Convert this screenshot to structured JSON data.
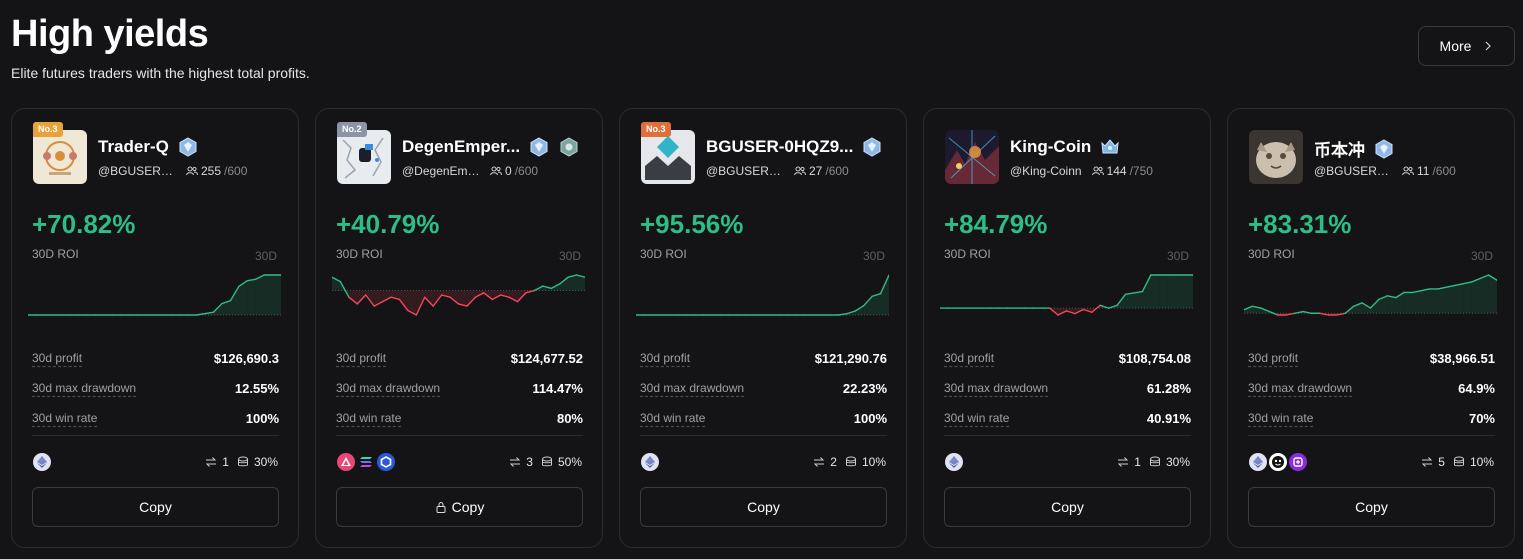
{
  "header": {
    "title": "High yields",
    "subtitle": "Elite futures traders with the highest total profits.",
    "more_label": "More"
  },
  "labels": {
    "roi": "30D ROI",
    "period": "30D",
    "profit": "30d profit",
    "drawdown": "30d max drawdown",
    "win_rate": "30d win rate",
    "copy": "Copy"
  },
  "colors": {
    "positive": "#2ebd85",
    "negative": "#f6465d",
    "background": "#141416"
  },
  "cards": [
    {
      "rank": "No.3",
      "name": "Trader-Q",
      "handle": "@BGUSER-N...",
      "followers": "255",
      "capacity": "/600",
      "roi": "+70.82%",
      "profit": "$126,690.3",
      "drawdown": "12.55%",
      "win_rate": "100%",
      "trades": "1",
      "share": "30%",
      "locked": false,
      "coins": [
        "ethereum-icon"
      ],
      "spark": [
        0,
        0,
        0,
        0,
        0,
        0,
        0,
        0,
        0,
        0,
        0,
        0,
        0,
        0,
        0,
        0,
        0,
        0,
        0,
        0,
        0,
        1,
        2,
        8,
        10,
        20,
        24,
        25,
        28,
        28,
        28
      ]
    },
    {
      "rank": "No.2",
      "name": "DegenEmper...",
      "handle": "@DegenEmp...",
      "followers": "0",
      "capacity": "/600",
      "roi": "+40.79%",
      "profit": "$124,677.52",
      "drawdown": "114.47%",
      "win_rate": "80%",
      "trades": "3",
      "share": "50%",
      "locked": true,
      "coins": [
        "arbitrum-icon",
        "solana-icon",
        "chainlink-icon"
      ],
      "spark": [
        6,
        4,
        -3,
        -6,
        -2,
        -7,
        -5,
        -3,
        -4,
        -9,
        -11,
        -3,
        -7,
        -2,
        -3,
        -6,
        -7,
        -3,
        -1,
        -4,
        -2,
        -3,
        -5,
        -1,
        0,
        2,
        1,
        3,
        6,
        7,
        6
      ]
    },
    {
      "rank": "No.3",
      "name": "BGUSER-0HQZ9...",
      "handle": "@BGUSER-0...",
      "followers": "27",
      "capacity": "/600",
      "roi": "+95.56%",
      "profit": "$121,290.76",
      "drawdown": "22.23%",
      "win_rate": "100%",
      "trades": "2",
      "share": "10%",
      "locked": false,
      "coins": [
        "ethereum-icon"
      ],
      "spark": [
        0,
        0,
        0,
        0,
        0,
        0,
        0,
        0,
        0,
        0,
        0,
        0,
        0,
        0,
        0,
        0,
        0,
        0,
        0,
        0,
        0,
        0,
        0,
        0,
        0,
        1,
        3,
        7,
        14,
        16,
        30
      ]
    },
    {
      "rank": "",
      "name": "King-Coin",
      "handle": "@King-Coinn",
      "followers": "144",
      "capacity": "/750",
      "roi": "+84.79%",
      "profit": "$108,754.08",
      "drawdown": "61.28%",
      "win_rate": "40.91%",
      "trades": "1",
      "share": "30%",
      "locked": false,
      "coins": [
        "ethereum-icon"
      ],
      "spark": [
        0,
        0,
        0,
        0,
        0,
        0,
        0,
        0,
        0,
        0,
        0,
        0,
        0,
        0,
        -5,
        -2,
        -4,
        -1,
        -3,
        2,
        0,
        2,
        10,
        11,
        12,
        24,
        24,
        24,
        24,
        24,
        24
      ]
    },
    {
      "rank": "",
      "name": "币本冲",
      "handle": "@BGUSER-X...",
      "followers": "11",
      "capacity": "/600",
      "roi": "+83.31%",
      "profit": "$38,966.51",
      "drawdown": "64.9%",
      "win_rate": "70%",
      "trades": "5",
      "share": "10%",
      "locked": false,
      "coins": [
        "ethereum-icon",
        "bonk-icon",
        "token-icon"
      ],
      "spark": [
        2,
        4,
        3,
        1,
        -1,
        -1,
        0,
        1,
        0,
        0,
        -1,
        -1,
        0,
        4,
        6,
        3,
        8,
        10,
        9,
        12,
        12,
        13,
        14,
        14,
        15,
        16,
        17,
        18,
        20,
        22,
        19
      ]
    }
  ]
}
